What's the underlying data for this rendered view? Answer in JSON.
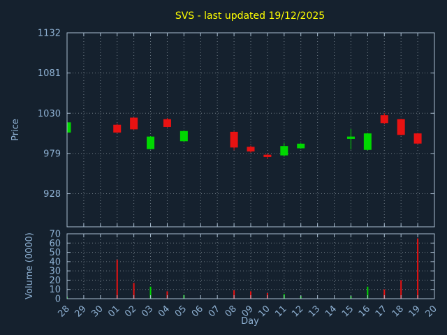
{
  "title": "SVS - last updated 19/12/2025",
  "axis": {
    "price_label": "Price",
    "volume_label": "Volume (0000)",
    "x_label": "Day"
  },
  "colors": {
    "background": "#15212e",
    "title": "#ffff00",
    "text": "#8fb2d4",
    "border": "#a9bdd0",
    "grid": "#c8d4dc",
    "up": "#00d800",
    "down": "#e81212"
  },
  "chart_data": [
    {
      "type": "candlestick",
      "panel": "price",
      "title": "SVS - last updated 19/12/2025",
      "ylabel": "Price",
      "xlabel": "Day",
      "ylim": [
        886,
        1132
      ],
      "yticks": [
        928,
        979,
        1030,
        1081,
        1132
      ],
      "grid": true,
      "categories": [
        "28",
        "29",
        "30",
        "01",
        "02",
        "03",
        "04",
        "05",
        "06",
        "07",
        "08",
        "09",
        "10",
        "11",
        "12",
        "13",
        "14",
        "15",
        "16",
        "17",
        "18",
        "19",
        "20"
      ],
      "series": [
        {
          "day": "28",
          "open": 1006,
          "high": 1018,
          "low": 1005,
          "close": 1018
        },
        {
          "day": "01",
          "open": 1015,
          "high": 1017,
          "low": 1005,
          "close": 1006
        },
        {
          "day": "02",
          "open": 1024,
          "high": 1025,
          "low": 1009,
          "close": 1010
        },
        {
          "day": "03",
          "open": 985,
          "high": 1001,
          "low": 984,
          "close": 1000
        },
        {
          "day": "04",
          "open": 1022,
          "high": 1024,
          "low": 1012,
          "close": 1013
        },
        {
          "day": "05",
          "open": 995,
          "high": 1008,
          "low": 994,
          "close": 1007
        },
        {
          "day": "08",
          "open": 1006,
          "high": 1007,
          "low": 983,
          "close": 987
        },
        {
          "day": "09",
          "open": 987,
          "high": 989,
          "low": 980,
          "close": 982
        },
        {
          "day": "10",
          "open": 977,
          "high": 979,
          "low": 972,
          "close": 975
        },
        {
          "day": "11",
          "open": 977,
          "high": 992,
          "low": 975,
          "close": 988
        },
        {
          "day": "12",
          "open": 986,
          "high": 992,
          "low": 985,
          "close": 991
        },
        {
          "day": "15",
          "open": 998,
          "high": 1010,
          "low": 984,
          "close": 1000
        },
        {
          "day": "16",
          "open": 984,
          "high": 1005,
          "low": 983,
          "close": 1004
        },
        {
          "day": "17",
          "open": 1027,
          "high": 1030,
          "low": 1016,
          "close": 1018
        },
        {
          "day": "18",
          "open": 1022,
          "high": 1023,
          "low": 1002,
          "close": 1003
        },
        {
          "day": "19",
          "open": 1004,
          "high": 1005,
          "low": 991,
          "close": 992
        }
      ]
    },
    {
      "type": "bar",
      "panel": "volume",
      "ylabel": "Volume (0000)",
      "ylim": [
        0,
        70
      ],
      "yticks": [
        0,
        10,
        20,
        30,
        40,
        50,
        60,
        70
      ],
      "grid": true,
      "values": [
        {
          "day": "28",
          "value": 2,
          "direction": "up"
        },
        {
          "day": "01",
          "value": 42,
          "direction": "down"
        },
        {
          "day": "02",
          "value": 17,
          "direction": "down"
        },
        {
          "day": "03",
          "value": 13,
          "direction": "up"
        },
        {
          "day": "04",
          "value": 8,
          "direction": "down"
        },
        {
          "day": "05",
          "value": 4,
          "direction": "up"
        },
        {
          "day": "08",
          "value": 9,
          "direction": "down"
        },
        {
          "day": "09",
          "value": 8,
          "direction": "down"
        },
        {
          "day": "10",
          "value": 6,
          "direction": "down"
        },
        {
          "day": "11",
          "value": 5,
          "direction": "up"
        },
        {
          "day": "12",
          "value": 3,
          "direction": "up"
        },
        {
          "day": "15",
          "value": 3,
          "direction": "up"
        },
        {
          "day": "16",
          "value": 13,
          "direction": "up"
        },
        {
          "day": "17",
          "value": 10,
          "direction": "down"
        },
        {
          "day": "18",
          "value": 20,
          "direction": "down"
        },
        {
          "day": "19",
          "value": 65,
          "direction": "down"
        }
      ]
    }
  ]
}
